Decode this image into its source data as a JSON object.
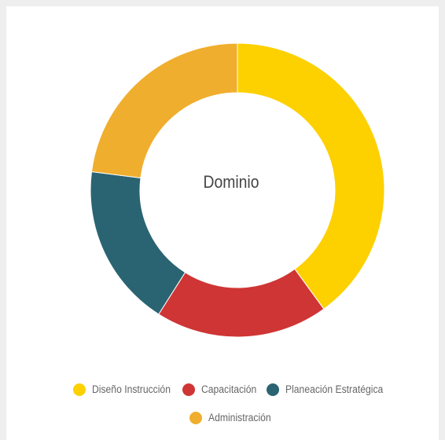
{
  "chart_data": {
    "type": "pie",
    "variant": "donut",
    "center_label": "Dominio",
    "slices": [
      {
        "name": "Diseño Instrucción",
        "value": 40,
        "color": "#FDD000"
      },
      {
        "name": "Capacitación",
        "value": 19,
        "color": "#CF3535"
      },
      {
        "name": "Planeación Estratégica",
        "value": 18,
        "color": "#2A6472"
      },
      {
        "name": "Administración",
        "value": 23,
        "color": "#F0AE2E"
      }
    ],
    "legend_position": "bottom"
  }
}
